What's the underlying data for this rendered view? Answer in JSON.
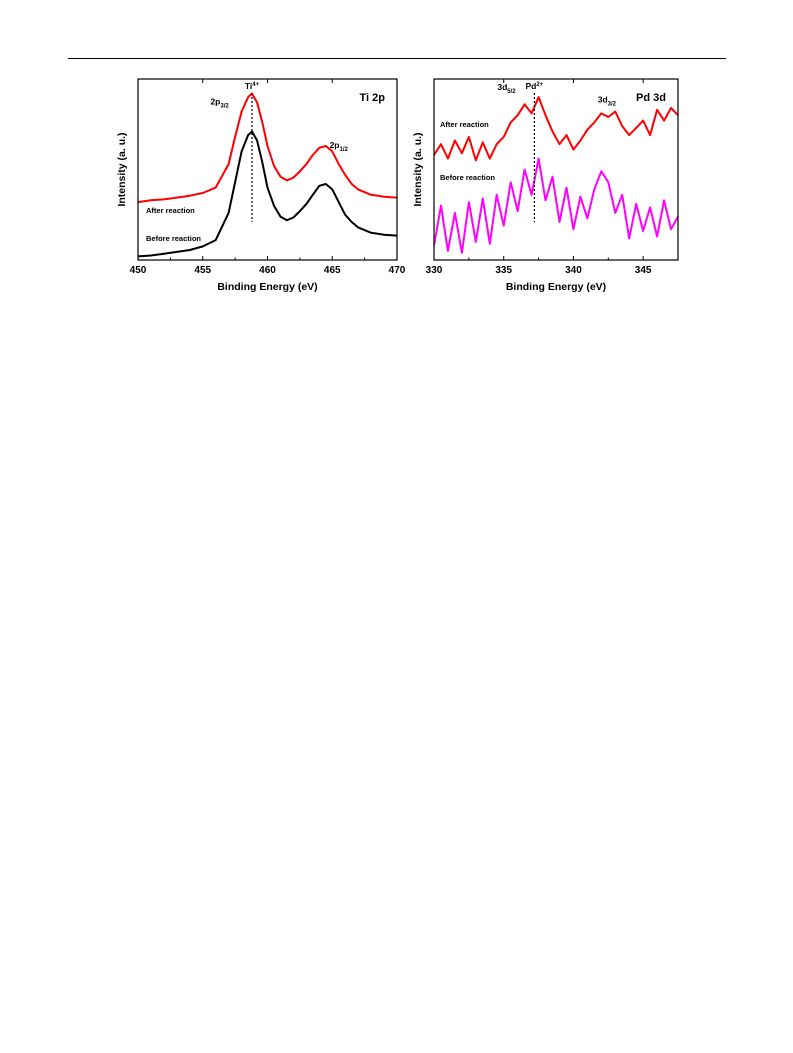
{
  "chart_data": [
    {
      "type": "line",
      "title": "Ti 2p",
      "xlabel": "Binding Energy (eV)",
      "ylabel": "Intensity (a. u.)",
      "xlim": [
        450,
        470
      ],
      "xticks": [
        "450",
        "455",
        "460",
        "465",
        "470"
      ],
      "ylim": [
        0,
        10
      ],
      "yticks_shown": false,
      "grid": false,
      "marker_line": {
        "x": 458.8,
        "label": "Ti",
        "label_sup": "4+"
      },
      "annotations": [
        {
          "text": "2p",
          "sub": "3/2",
          "x": 456.3,
          "y": 8.6
        },
        {
          "text": "2p",
          "sub": "1/2",
          "x": 465.5,
          "y": 6.2
        }
      ],
      "series": [
        {
          "name": "After reaction",
          "color": "#ff0000",
          "x": [
            450,
            451,
            452,
            453,
            454,
            455,
            456,
            457,
            457.5,
            458,
            458.5,
            458.8,
            459.2,
            459.6,
            460,
            460.5,
            461,
            461.5,
            462,
            462.5,
            463,
            463.5,
            464,
            464.5,
            465,
            465.5,
            466,
            466.5,
            467,
            468,
            469,
            470
          ],
          "y": [
            3.2,
            3.3,
            3.35,
            3.45,
            3.55,
            3.7,
            4.0,
            5.3,
            6.8,
            8.2,
            9.0,
            9.2,
            8.7,
            7.6,
            6.3,
            5.2,
            4.6,
            4.4,
            4.55,
            4.9,
            5.3,
            5.8,
            6.2,
            6.3,
            6.0,
            5.3,
            4.7,
            4.2,
            3.9,
            3.6,
            3.5,
            3.45
          ]
        },
        {
          "name": "Before reaction",
          "color": "#000000",
          "x": [
            450,
            451,
            452,
            453,
            454,
            455,
            456,
            457,
            457.5,
            458,
            458.5,
            458.8,
            459.2,
            459.6,
            460,
            460.5,
            461,
            461.5,
            462,
            462.5,
            463,
            463.5,
            464,
            464.5,
            465,
            465.5,
            466,
            466.5,
            467,
            468,
            469,
            470
          ],
          "y": [
            0.2,
            0.25,
            0.35,
            0.45,
            0.55,
            0.75,
            1.1,
            2.6,
            4.3,
            6.0,
            6.9,
            7.1,
            6.6,
            5.4,
            4.0,
            3.0,
            2.4,
            2.2,
            2.35,
            2.7,
            3.1,
            3.6,
            4.1,
            4.2,
            3.9,
            3.2,
            2.5,
            2.1,
            1.8,
            1.5,
            1.4,
            1.35
          ]
        }
      ]
    },
    {
      "type": "line",
      "title": "Pd 3d",
      "xlabel": "Binding Energy (eV)",
      "ylabel": "Intensity (a. u.)",
      "xlim": [
        330,
        347.5
      ],
      "xticks": [
        "330",
        "335",
        "340",
        "345"
      ],
      "ylim": [
        0,
        10
      ],
      "yticks_shown": false,
      "grid": false,
      "marker_line": {
        "x": 337.2,
        "label": "Pd",
        "label_sup": "2+"
      },
      "annotations": [
        {
          "text": "3d",
          "sub": "5/2",
          "x": 335.2,
          "y": 9.4
        },
        {
          "text": "3d",
          "sub": "3/2",
          "x": 342.4,
          "y": 8.7
        }
      ],
      "series": [
        {
          "name": "After reaction",
          "color": "#ff0000",
          "x": [
            330,
            330.5,
            331,
            331.5,
            332,
            332.5,
            333,
            333.5,
            334,
            334.5,
            335,
            335.5,
            336,
            336.5,
            337,
            337.5,
            338,
            338.5,
            339,
            339.5,
            340,
            340.5,
            341,
            341.5,
            342,
            342.5,
            343,
            343.5,
            344,
            344.5,
            345,
            345.5,
            346,
            346.5,
            347,
            347.5
          ],
          "y": [
            5.8,
            6.4,
            5.6,
            6.6,
            5.9,
            6.8,
            5.5,
            6.5,
            5.6,
            6.4,
            6.8,
            7.6,
            8.0,
            8.6,
            8.1,
            9.0,
            8.0,
            7.1,
            6.4,
            6.9,
            6.1,
            6.6,
            7.2,
            7.6,
            8.1,
            7.9,
            8.2,
            7.4,
            6.9,
            7.3,
            7.7,
            6.9,
            8.3,
            7.7,
            8.4,
            8.0
          ]
        },
        {
          "name": "Before reaction",
          "color": "#ff00ff",
          "x": [
            330,
            330.5,
            331,
            331.5,
            332,
            332.5,
            333,
            333.5,
            334,
            334.5,
            335,
            335.5,
            336,
            336.5,
            337,
            337.5,
            338,
            338.5,
            339,
            339.5,
            340,
            340.5,
            341,
            341.5,
            342,
            342.5,
            343,
            343.5,
            344,
            344.5,
            345,
            345.5,
            346,
            346.5,
            347,
            347.5
          ],
          "y": [
            0.8,
            3.0,
            0.5,
            2.6,
            0.4,
            3.2,
            1.0,
            3.4,
            0.9,
            3.6,
            1.9,
            4.3,
            2.7,
            5.0,
            3.6,
            5.6,
            3.3,
            4.6,
            2.1,
            4.0,
            1.7,
            3.5,
            2.3,
            3.9,
            4.9,
            4.3,
            2.6,
            3.6,
            1.2,
            3.1,
            1.6,
            2.9,
            1.3,
            3.3,
            1.7,
            2.4
          ]
        }
      ]
    }
  ]
}
